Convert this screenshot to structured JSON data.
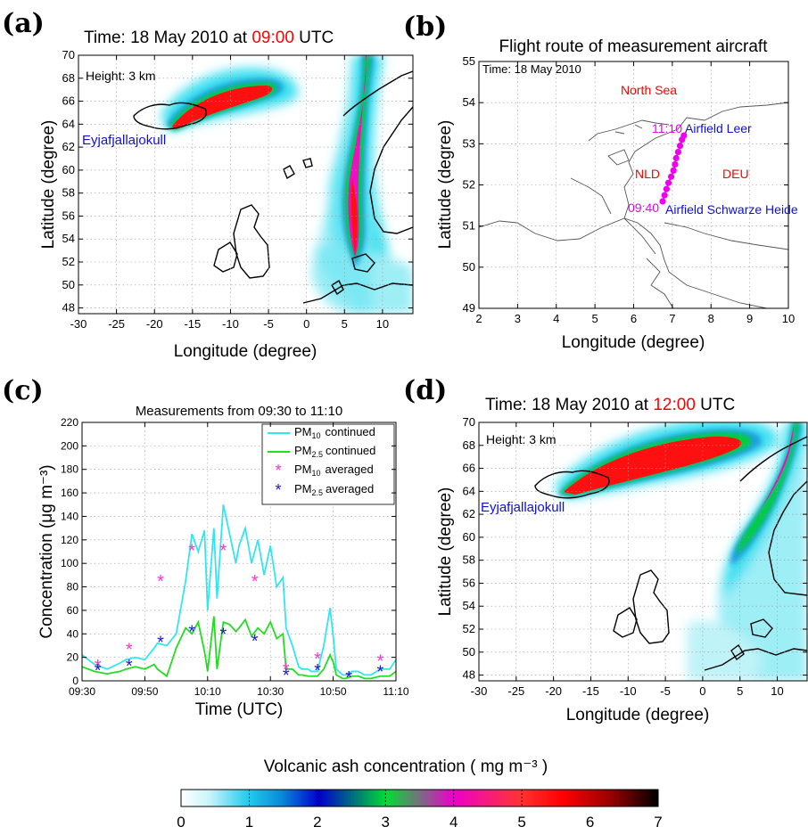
{
  "panels": {
    "a": {
      "letter": "(a)",
      "title_prefix": "Time:  18 May 2010 at ",
      "title_time": "09:00",
      "title_suffix": " UTC",
      "height_label": "Height: 3 km",
      "source_label": "Eyjafjallajokull",
      "xlabel": "Longitude (degree)",
      "ylabel": "Latitude (degree)",
      "xticks": [
        "-30",
        "-25",
        "-20",
        "-15",
        "-10",
        "-5",
        "0",
        "5",
        "10"
      ],
      "yticks": [
        "48",
        "50",
        "52",
        "54",
        "56",
        "58",
        "60",
        "62",
        "64",
        "66",
        "68",
        "70"
      ]
    },
    "b": {
      "letter": "(b)",
      "title": "Flight route of measurement aircraft",
      "time_label": "Time: 18 May  2010",
      "north_sea": "North Sea",
      "nld": "NLD",
      "deu": "DEU",
      "t_end": "11:10",
      "t_start": "09:40",
      "airfield_leer": "Airfield Leer",
      "airfield_sh": "Airfield Schwarze Heide",
      "xlabel": "Longitude (degree)",
      "ylabel": "Latitude (degree)",
      "xticks": [
        "2",
        "3",
        "4",
        "5",
        "6",
        "7",
        "8",
        "9",
        "10"
      ],
      "yticks": [
        "49",
        "50",
        "51",
        "52",
        "53",
        "54",
        "55"
      ]
    },
    "c": {
      "letter": "(c)",
      "title": "Measurements from 09:30 to 11:10",
      "xlabel": "Time  (UTC)",
      "ylabel": "Concentration  (μg m⁻³)",
      "xticks": [
        "09:30",
        "09:50",
        "10:10",
        "10:30",
        "10:50",
        "11:10"
      ],
      "yticks": [
        "0",
        "20",
        "40",
        "60",
        "80",
        "100",
        "120",
        "140",
        "160",
        "180",
        "200",
        "220"
      ],
      "legend": {
        "pm10_cont": "continued",
        "pm25_cont": "continued",
        "pm10_avg": "averaged",
        "pm25_avg": "averaged",
        "pm": "PM",
        "sub10": "10",
        "sub25": "2.5"
      }
    },
    "d": {
      "letter": "(d)",
      "title_prefix": "Time:  18 May 2010 at ",
      "title_time": "12:00",
      "title_suffix": " UTC",
      "height_label": "Height: 3 km",
      "source_label": "Eyjafjallajokull",
      "xlabel": "Longitude (degree)",
      "ylabel": "Latitude (degree)",
      "xticks": [
        "-30",
        "-25",
        "-20",
        "-15",
        "-10",
        "-5",
        "0",
        "5",
        "10"
      ],
      "yticks": [
        "48",
        "50",
        "52",
        "54",
        "56",
        "58",
        "60",
        "62",
        "64",
        "66",
        "68",
        "70"
      ]
    }
  },
  "colorbar": {
    "label": "Volcanic ash concentration ( mg m⁻³ )",
    "ticks": [
      "0",
      "1",
      "2",
      "3",
      "4",
      "5",
      "6",
      "7"
    ]
  },
  "colors": {
    "red_time": "#ff0000",
    "blue_label": "#1010d8",
    "magenta": "#ee00ee",
    "pm10_line": "#33e6ee",
    "pm25_line": "#22dd22",
    "pm10_marker": "#ff33cc",
    "pm25_marker": "#1a1acc"
  },
  "chart_data": [
    {
      "type": "heatmap",
      "title": "Time:  18 May 2010 at 09:00 UTC",
      "xlabel": "Longitude (degree)",
      "ylabel": "Latitude (degree)",
      "xlim": [
        -30,
        14
      ],
      "ylim": [
        47.5,
        70
      ],
      "zlim": [
        0,
        7
      ]
    },
    {
      "type": "scatter",
      "title": "Flight route of measurement aircraft",
      "xlabel": "Longitude (degree)",
      "ylabel": "Latitude (degree)",
      "xlim": [
        2,
        10
      ],
      "ylim": [
        49,
        55
      ],
      "route": [
        [
          6.75,
          51.6
        ],
        [
          6.8,
          51.75
        ],
        [
          6.85,
          51.9
        ],
        [
          6.9,
          52.05
        ],
        [
          6.97,
          52.2
        ],
        [
          7.03,
          52.35
        ],
        [
          7.07,
          52.5
        ],
        [
          7.1,
          52.65
        ],
        [
          7.15,
          52.8
        ],
        [
          7.2,
          52.95
        ],
        [
          7.25,
          53.1
        ],
        [
          7.3,
          53.2
        ]
      ]
    },
    {
      "type": "line",
      "title": "Measurements from 09:30 to 11:10",
      "xlabel": "Time  (UTC)",
      "ylabel": "Concentration  (μg m⁻³)",
      "xlim": [
        0,
        100
      ],
      "ylim": [
        0,
        220
      ],
      "series": [
        {
          "name": "PM10 continued",
          "x": [
            0,
            4,
            8,
            12,
            14,
            17,
            20,
            23,
            24,
            27,
            30,
            33,
            35,
            37,
            39,
            40,
            42,
            43,
            45,
            47,
            49,
            50,
            52,
            54,
            56,
            58,
            60,
            62,
            64,
            65,
            67,
            69,
            70,
            72,
            73,
            75,
            77,
            79,
            80,
            81,
            83,
            84,
            86,
            88,
            90,
            92,
            95,
            98,
            100
          ],
          "y": [
            22,
            14,
            10,
            15,
            18,
            20,
            18,
            28,
            32,
            30,
            40,
            85,
            125,
            110,
            128,
            60,
            130,
            70,
            150,
            125,
            100,
            115,
            130,
            100,
            120,
            90,
            115,
            80,
            88,
            45,
            30,
            12,
            10,
            10,
            8,
            8,
            30,
            62,
            38,
            10,
            5,
            5,
            8,
            8,
            5,
            5,
            10,
            10,
            18
          ]
        },
        {
          "name": "PM2.5 continued",
          "x": [
            0,
            4,
            8,
            12,
            14,
            17,
            20,
            23,
            24,
            27,
            30,
            33,
            35,
            37,
            39,
            40,
            42,
            43,
            45,
            47,
            49,
            50,
            52,
            54,
            56,
            58,
            60,
            62,
            64,
            65,
            67,
            69,
            70,
            72,
            73,
            75,
            77,
            79,
            80,
            81,
            83,
            84,
            86,
            88,
            90,
            92,
            95,
            98,
            100
          ],
          "y": [
            12,
            8,
            6,
            8,
            10,
            12,
            10,
            14,
            10,
            4,
            28,
            45,
            40,
            50,
            25,
            8,
            55,
            10,
            50,
            48,
            42,
            45,
            52,
            38,
            45,
            40,
            50,
            36,
            40,
            10,
            10,
            5,
            5,
            4,
            4,
            4,
            10,
            22,
            16,
            5,
            2,
            2,
            4,
            4,
            2,
            2,
            4,
            4,
            8
          ]
        },
        {
          "name": "PM10 averaged",
          "x": [
            5,
            15,
            25,
            35,
            45,
            55,
            65,
            75,
            85,
            95
          ],
          "y": [
            13,
            27,
            85,
            111,
            111,
            85,
            10,
            19,
            3,
            17
          ]
        },
        {
          "name": "PM2.5 averaged",
          "x": [
            5,
            15,
            25,
            35,
            45,
            55,
            65,
            75,
            85,
            95
          ],
          "y": [
            9,
            13,
            33,
            42,
            40,
            34,
            5,
            9,
            3,
            8
          ]
        }
      ]
    },
    {
      "type": "heatmap",
      "title": "Time:  18 May 2010 at 12:00 UTC",
      "xlabel": "Longitude (degree)",
      "ylabel": "Latitude (degree)",
      "xlim": [
        -30,
        14
      ],
      "ylim": [
        47.5,
        70
      ],
      "zlim": [
        0,
        7
      ]
    }
  ]
}
